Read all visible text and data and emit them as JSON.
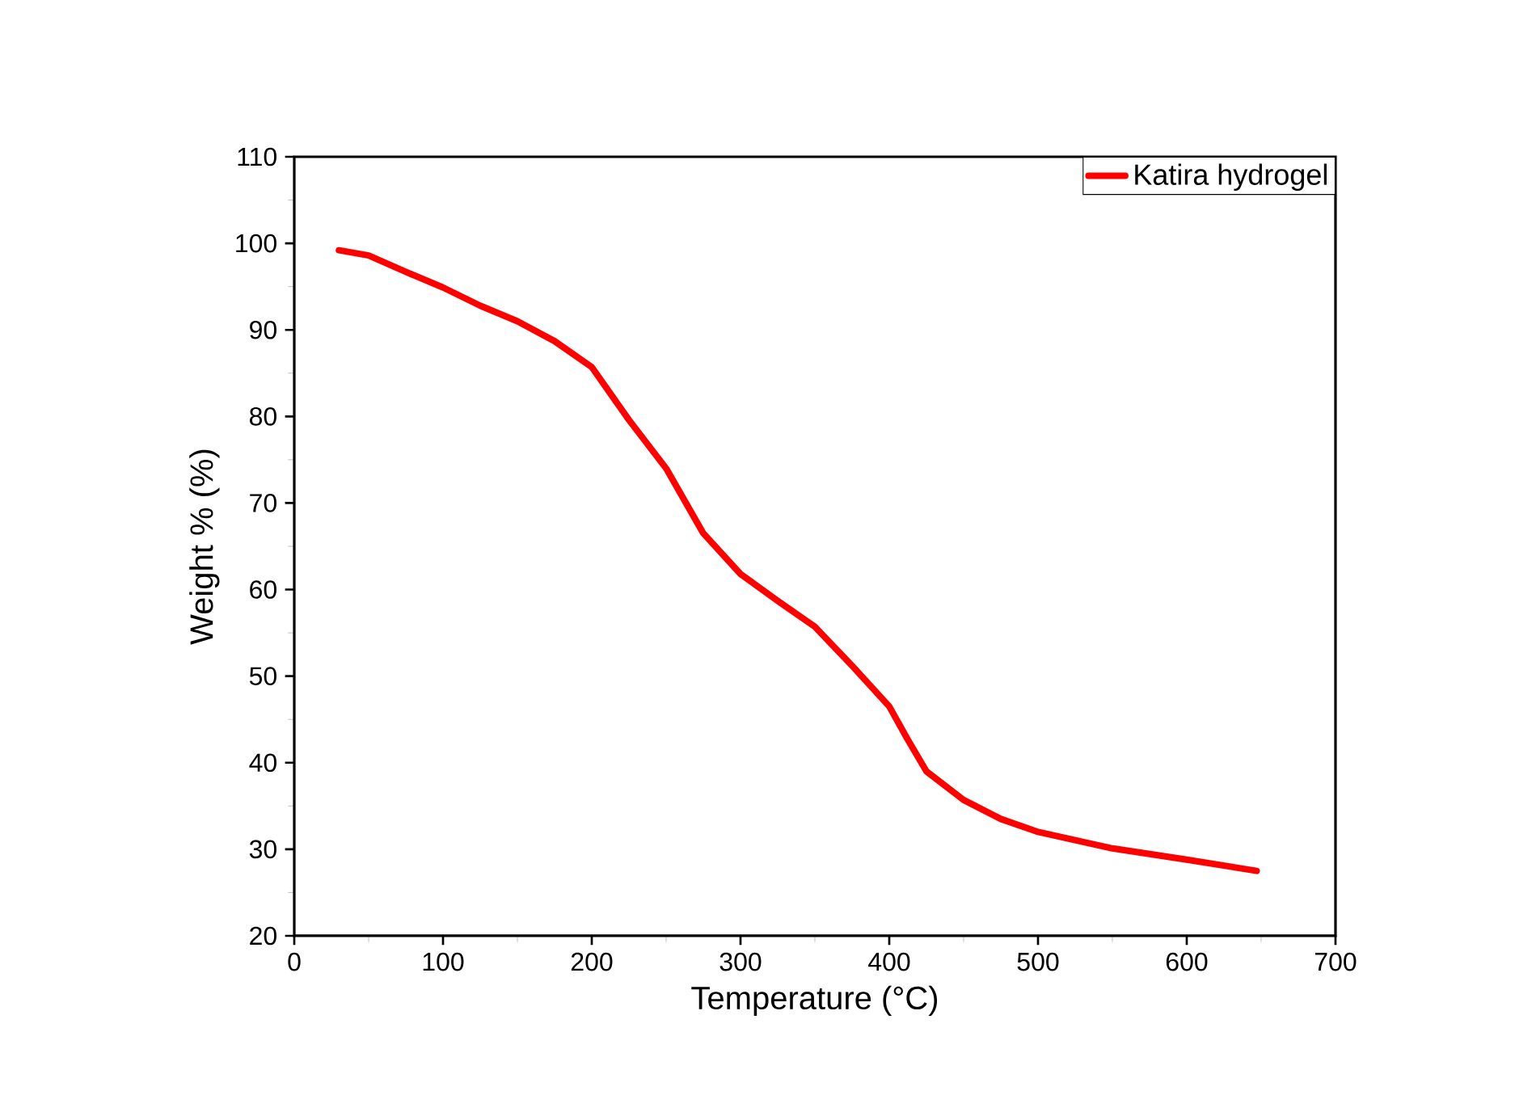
{
  "chart_data": {
    "type": "line",
    "xlabel": "Temperature (°C)",
    "ylabel": "Weight % (%)",
    "xlim": [
      0,
      700
    ],
    "xticks": [
      0,
      100,
      200,
      300,
      400,
      500,
      600,
      700
    ],
    "ylim": [
      20,
      110
    ],
    "yticks": [
      20,
      30,
      40,
      50,
      60,
      70,
      80,
      90,
      100,
      110
    ],
    "grid": false,
    "legend": "top right",
    "marker": "none",
    "line_style": "solid",
    "x": [
      30,
      50,
      75,
      100,
      125,
      150,
      175,
      200,
      225,
      250,
      275,
      300,
      325,
      350,
      375,
      400,
      412,
      425,
      450,
      475,
      500,
      550,
      600,
      647
    ],
    "series": [
      {
        "name": "Katira hydrogel",
        "color": "#ff0000",
        "values": [
          99.2,
          98.6,
          96.7,
          94.9,
          92.8,
          91,
          88.7,
          85.7,
          79.6,
          74,
          66.5,
          61.8,
          58.7,
          55.7,
          51.2,
          46.5,
          42.8,
          39,
          35.7,
          33.5,
          32,
          30.1,
          28.8,
          27.5
        ]
      }
    ]
  }
}
